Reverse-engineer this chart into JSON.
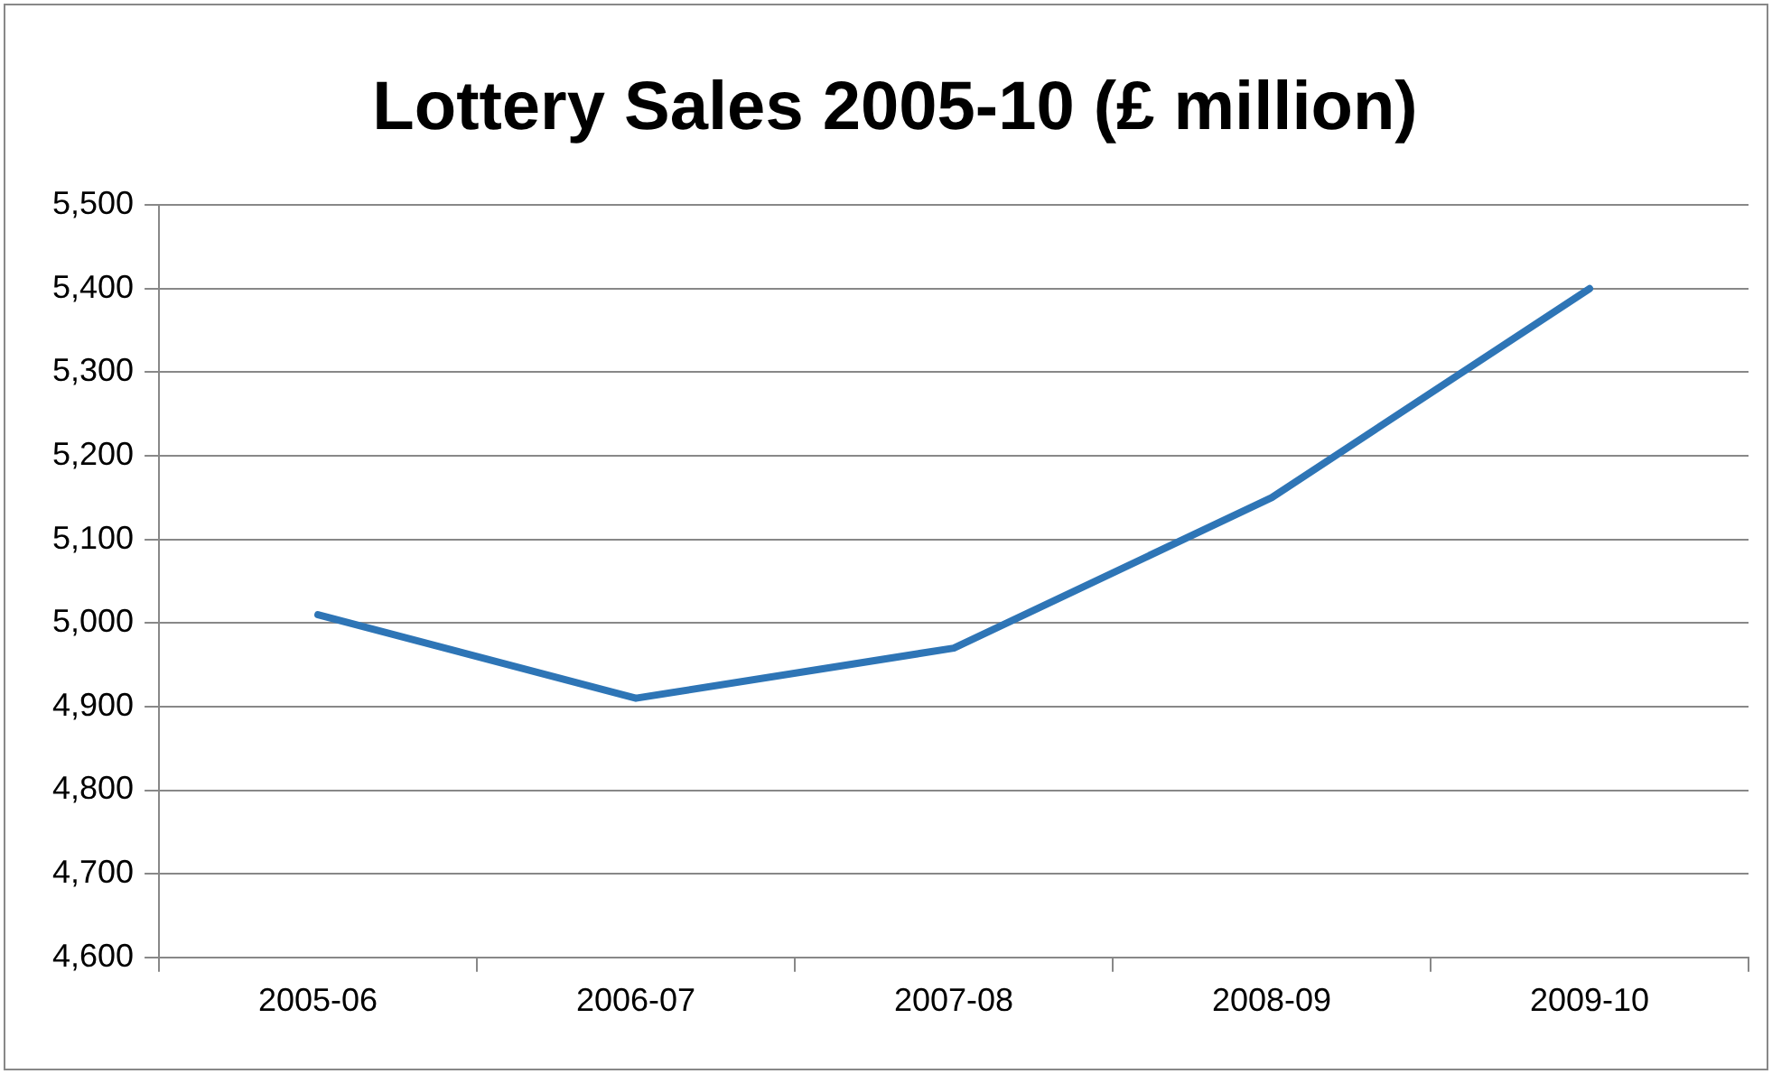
{
  "chart_data": {
    "type": "line",
    "title": "Lottery Sales 2005-10 (£ million)",
    "categories": [
      "2005-06",
      "2006-07",
      "2007-08",
      "2008-09",
      "2009-10"
    ],
    "values": [
      5010,
      4910,
      4970,
      5150,
      5400
    ],
    "color": "#2e75b6",
    "ylim": [
      4600,
      5500
    ],
    "yticks": [
      {
        "value": 4600,
        "label": "4,600"
      },
      {
        "value": 4700,
        "label": "4,700"
      },
      {
        "value": 4800,
        "label": "4,800"
      },
      {
        "value": 4900,
        "label": "4,900"
      },
      {
        "value": 5000,
        "label": "5,000"
      },
      {
        "value": 5100,
        "label": "5,100"
      },
      {
        "value": 5200,
        "label": "5,200"
      },
      {
        "value": 5300,
        "label": "5,300"
      },
      {
        "value": 5400,
        "label": "5,400"
      },
      {
        "value": 5500,
        "label": "5,500"
      }
    ],
    "grid": "y",
    "marker": "none",
    "line_style": "solid"
  }
}
